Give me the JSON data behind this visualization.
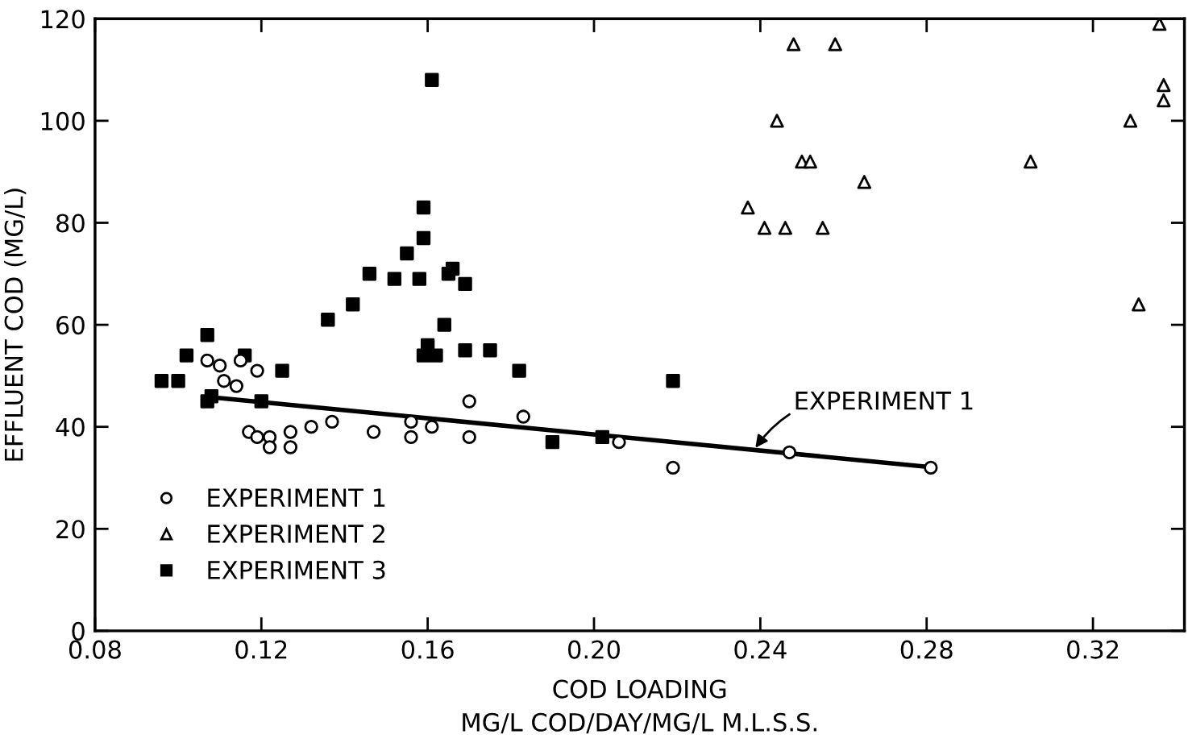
{
  "chart_data": {
    "type": "scatter",
    "xlabel": "COD LOADING\nMG/L COD/DAY/MG/L M.L.S.S.",
    "ylabel": "EFFLUENT COD (MG/L)",
    "xlim": [
      0.08,
      0.342
    ],
    "ylim": [
      0,
      120
    ],
    "xticks": [
      "0.08",
      {
        "value": 0.12,
        "label": "0.12"
      },
      {
        "value": 0.16,
        "label": "0.16"
      },
      {
        "value": 0.2,
        "label": "0.20"
      },
      {
        "value": 0.24,
        "label": "0.24"
      },
      {
        "value": 0.28,
        "label": "0.28"
      },
      {
        "value": 0.32,
        "label": "0.32"
      }
    ],
    "yticks": [
      0,
      20,
      40,
      60,
      80,
      100,
      120
    ],
    "grid": false,
    "legend": "bottom left",
    "series": [
      {
        "name": "EXPERIMENT 1",
        "type": "scatter",
        "marker": "circle",
        "color": "#000000",
        "x": [
          0.107,
          0.11,
          0.115,
          0.119,
          0.111,
          0.114,
          0.117,
          0.119,
          0.122,
          0.122,
          0.127,
          0.127,
          0.132,
          0.137,
          0.147,
          0.156,
          0.156,
          0.161,
          0.17,
          0.17,
          0.183,
          0.206,
          0.219,
          0.247,
          0.281
        ],
        "values": [
          53,
          52,
          53,
          51,
          49,
          48,
          39,
          38,
          38,
          36,
          39,
          36,
          40,
          41,
          39,
          41,
          38,
          40,
          45,
          38,
          42,
          37,
          32,
          35,
          32
        ]
      },
      {
        "name": "EXPERIMENT 2",
        "type": "scatter",
        "marker": "triangle",
        "color": "#000000",
        "x": [
          0.248,
          0.258,
          0.244,
          0.237,
          0.241,
          0.246,
          0.255,
          0.25,
          0.252,
          0.265,
          0.305,
          0.329,
          0.336,
          0.337,
          0.337,
          0.331
        ],
        "values": [
          115,
          115,
          100,
          83,
          79,
          79,
          79,
          92,
          92,
          88,
          92,
          100,
          119,
          107,
          104,
          64
        ]
      },
      {
        "name": "EXPERIMENT 3",
        "type": "scatter",
        "marker": "square",
        "color": "#000000",
        "x": [
          0.096,
          0.1,
          0.102,
          0.107,
          0.107,
          0.108,
          0.116,
          0.12,
          0.125,
          0.136,
          0.142,
          0.146,
          0.152,
          0.155,
          0.158,
          0.159,
          0.159,
          0.161,
          0.165,
          0.166,
          0.169,
          0.164,
          0.16,
          0.159,
          0.162,
          0.169,
          0.175,
          0.182,
          0.19,
          0.202,
          0.219
        ],
        "values": [
          49,
          49,
          54,
          58,
          45,
          46,
          54,
          45,
          51,
          61,
          64,
          70,
          69,
          74,
          69,
          77,
          83,
          108,
          70,
          71,
          68,
          60,
          56,
          54,
          54,
          55,
          55,
          51,
          37,
          38,
          49
        ]
      },
      {
        "type": "line",
        "marker": "none",
        "line_style": "solid",
        "color": "#000000",
        "x": [
          0.108,
          0.281
        ],
        "values": [
          45.8,
          32.1
        ]
      }
    ],
    "annotations": [
      {
        "text": "EXPERIMENT 1",
        "x": 0.2385,
        "y": 35.5
      }
    ]
  }
}
